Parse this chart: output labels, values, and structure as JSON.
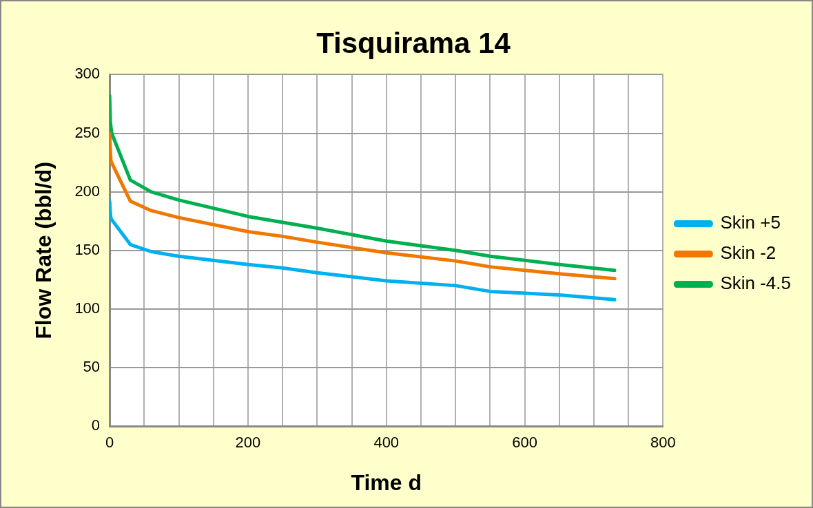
{
  "chart_data": {
    "type": "line",
    "title": "Tisquirama 14",
    "xlabel": "Time d",
    "ylabel": "Flow Rate (bbl/d)",
    "xlim": [
      0,
      800
    ],
    "xticks": [
      0,
      {
        "value": 50,
        "label": null
      },
      {
        "value": 100,
        "label": null
      },
      {
        "value": 150,
        "label": null
      },
      200,
      {
        "value": 250,
        "label": null
      },
      {
        "value": 300,
        "label": null
      },
      {
        "value": 350,
        "label": null
      },
      400,
      {
        "value": 450,
        "label": null
      },
      {
        "value": 500,
        "label": null
      },
      {
        "value": 550,
        "label": null
      },
      600,
      {
        "value": 650,
        "label": null
      },
      {
        "value": 700,
        "label": null
      },
      {
        "value": 750,
        "label": null
      },
      800
    ],
    "ylim": [
      0,
      300
    ],
    "yticks": [
      0,
      50,
      100,
      150,
      200,
      250,
      300
    ],
    "grid": true,
    "legend": "right",
    "marker": "none",
    "line_style": "solid",
    "series": [
      {
        "name": "Skin +5",
        "color": "#00b0f0",
        "x": [
          0,
          1,
          2,
          30,
          60,
          100,
          200,
          250,
          300,
          400,
          500,
          550,
          650,
          730
        ],
        "values": [
          192,
          182,
          177,
          155,
          149,
          145,
          138,
          135,
          131,
          124,
          120,
          115,
          112,
          108
        ]
      },
      {
        "name": "Skin -2",
        "color": "#f07800",
        "x": [
          0,
          1,
          2,
          30,
          60,
          100,
          200,
          250,
          300,
          400,
          500,
          550,
          650,
          730
        ],
        "values": [
          250,
          235,
          226,
          192,
          184,
          178,
          166,
          162,
          157,
          148,
          141,
          136,
          130,
          126
        ]
      },
      {
        "name": "Skin -4.5",
        "color": "#00b050",
        "x": [
          0,
          1,
          3,
          30,
          60,
          100,
          200,
          250,
          300,
          400,
          500,
          550,
          650,
          730
        ],
        "values": [
          282,
          260,
          250,
          210,
          200,
          193,
          179,
          174,
          169,
          158,
          150,
          145,
          138,
          133
        ]
      }
    ]
  }
}
